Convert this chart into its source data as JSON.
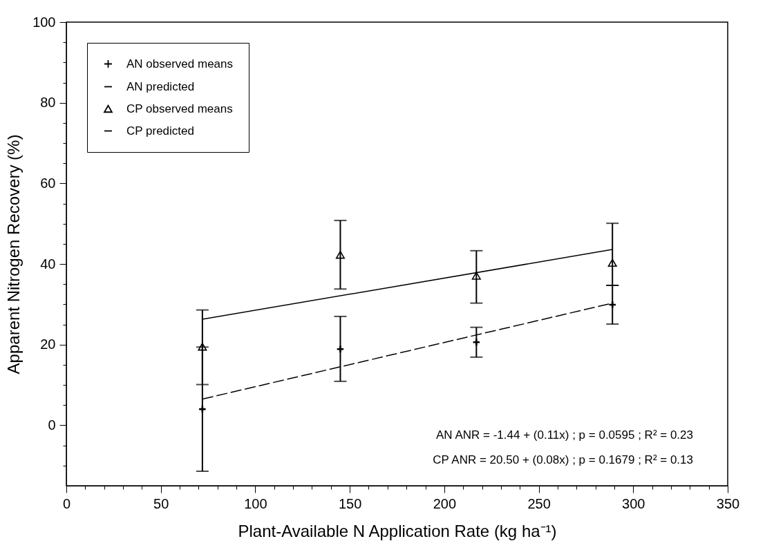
{
  "chart_data": {
    "type": "scatter",
    "xlabel": "Plant-Available N Application Rate (kg ha⁻¹)",
    "ylabel": "Apparent Nitrogen Recovery (%)",
    "xlim": [
      0,
      350
    ],
    "xticks": [
      0,
      {
        "value": 10,
        "label": null
      },
      {
        "value": 20,
        "label": null
      },
      {
        "value": 30,
        "label": null
      },
      {
        "value": 40,
        "label": null
      },
      50,
      {
        "value": 60,
        "label": null
      },
      {
        "value": 70,
        "label": null
      },
      {
        "value": 80,
        "label": null
      },
      {
        "value": 90,
        "label": null
      },
      100,
      {
        "value": 110,
        "label": null
      },
      {
        "value": 120,
        "label": null
      },
      {
        "value": 130,
        "label": null
      },
      {
        "value": 140,
        "label": null
      },
      150,
      {
        "value": 160,
        "label": null
      },
      {
        "value": 170,
        "label": null
      },
      {
        "value": 180,
        "label": null
      },
      {
        "value": 190,
        "label": null
      },
      200,
      {
        "value": 210,
        "label": null
      },
      {
        "value": 220,
        "label": null
      },
      {
        "value": 230,
        "label": null
      },
      {
        "value": 240,
        "label": null
      },
      250,
      {
        "value": 260,
        "label": null
      },
      {
        "value": 270,
        "label": null
      },
      {
        "value": 280,
        "label": null
      },
      {
        "value": 290,
        "label": null
      },
      300,
      {
        "value": 310,
        "label": null
      },
      {
        "value": 320,
        "label": null
      },
      {
        "value": 330,
        "label": null
      },
      {
        "value": 340,
        "label": null
      },
      350
    ],
    "ylim": [
      -15,
      100
    ],
    "yticks": [
      {
        "value": -10,
        "label": null
      },
      {
        "value": -5,
        "label": null
      },
      0,
      {
        "value": 5,
        "label": null
      },
      {
        "value": 10,
        "label": null
      },
      {
        "value": 15,
        "label": null
      },
      20,
      {
        "value": 25,
        "label": null
      },
      {
        "value": 30,
        "label": null
      },
      {
        "value": 35,
        "label": null
      },
      40,
      {
        "value": 45,
        "label": null
      },
      {
        "value": 50,
        "label": null
      },
      {
        "value": 55,
        "label": null
      },
      60,
      {
        "value": 65,
        "label": null
      },
      {
        "value": 70,
        "label": null
      },
      {
        "value": 75,
        "label": null
      },
      80,
      {
        "value": 85,
        "label": null
      },
      {
        "value": 90,
        "label": null
      },
      {
        "value": 95,
        "label": null
      },
      100
    ],
    "legend": "top left",
    "series": [
      {
        "name": "AN observed means",
        "type": "scatter",
        "marker": "cross",
        "color": "#000000",
        "x": [
          72,
          145,
          217,
          289
        ],
        "values": [
          4.0,
          18.9,
          20.6,
          29.9
        ],
        "errors": [
          [
            -11.4,
            19.4
          ],
          [
            10.9,
            27.0
          ],
          [
            16.9,
            24.3
          ],
          [
            25.1,
            34.7
          ]
        ]
      },
      {
        "name": "AN predicted",
        "type": "line",
        "line_style": "dashed",
        "color": "#000000",
        "x": [
          72,
          289
        ],
        "values": [
          6.5,
          30.3
        ]
      },
      {
        "name": "CP observed means",
        "type": "scatter",
        "marker": "triangle",
        "color": "#000000",
        "x": [
          72,
          145,
          217,
          289
        ],
        "values": [
          19.5,
          42.3,
          37.1,
          40.3
        ],
        "errors": [
          [
            10.1,
            28.6
          ],
          [
            33.8,
            50.8
          ],
          [
            30.3,
            43.3
          ],
          [
            34.7,
            50.1
          ]
        ]
      },
      {
        "name": "CP predicted",
        "type": "line",
        "line_style": "solid",
        "color": "#000000",
        "x": [
          72,
          289
        ],
        "values": [
          26.3,
          43.6
        ]
      }
    ],
    "annotations": [
      "AN ANR = -1.44 + (0.11x) ; p = 0.0595 ; R² = 0.23",
      "CP ANR = 20.50 + (0.08x) ; p = 0.1679 ; R² = 0.13"
    ]
  }
}
